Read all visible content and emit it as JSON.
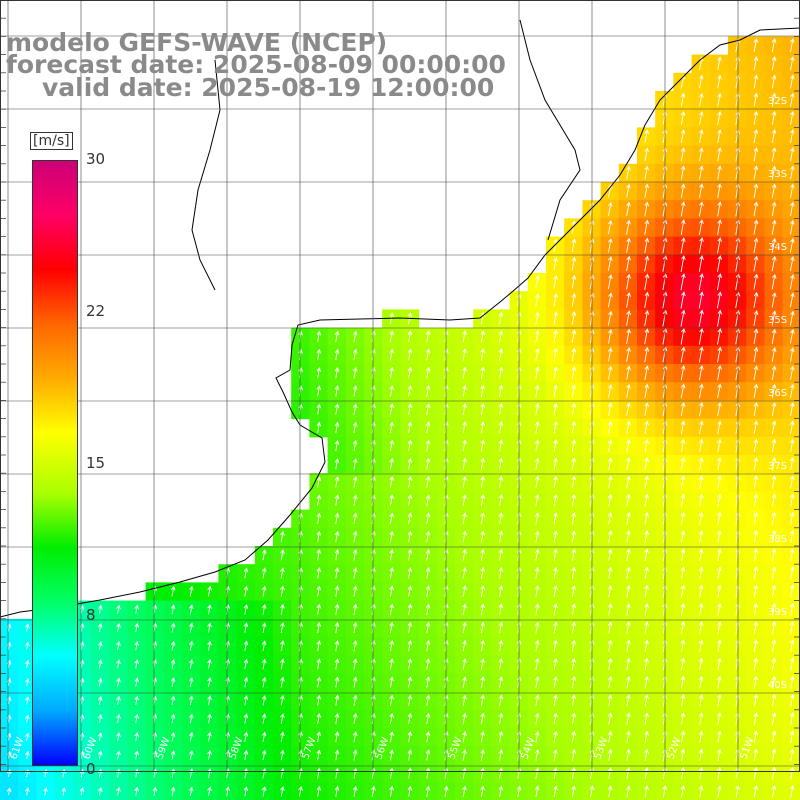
{
  "title": {
    "model": "modelo GEFS-WAVE (NCEP)",
    "forecast": "forecast date: 2025-08-09 00:00:00",
    "valid": "valid date: 2025-08-19 12:00:00"
  },
  "colorbar": {
    "unit": "[m/s]",
    "ticks": [
      "30",
      "22",
      "15",
      "8",
      "0"
    ],
    "min": 0,
    "max": 30,
    "colors": [
      "#0000ff",
      "#00aaff",
      "#00ffff",
      "#00ff66",
      "#00ee00",
      "#aaff00",
      "#ffff00",
      "#ffaa00",
      "#ff6600",
      "#ff0000",
      "#ff0066",
      "#cc0077"
    ]
  },
  "lat_labels": [
    "32S",
    "33S",
    "34S",
    "35S",
    "36S",
    "37S",
    "38S",
    "39S",
    "40S"
  ],
  "lon_labels": [
    "61W",
    "60W",
    "59W",
    "58W",
    "57W",
    "56W",
    "55W",
    "54W",
    "53W",
    "52W",
    "51W"
  ],
  "legend_colors": {
    "land": "#ffffff",
    "grid": "#444444",
    "arrow": "#ffffff"
  }
}
